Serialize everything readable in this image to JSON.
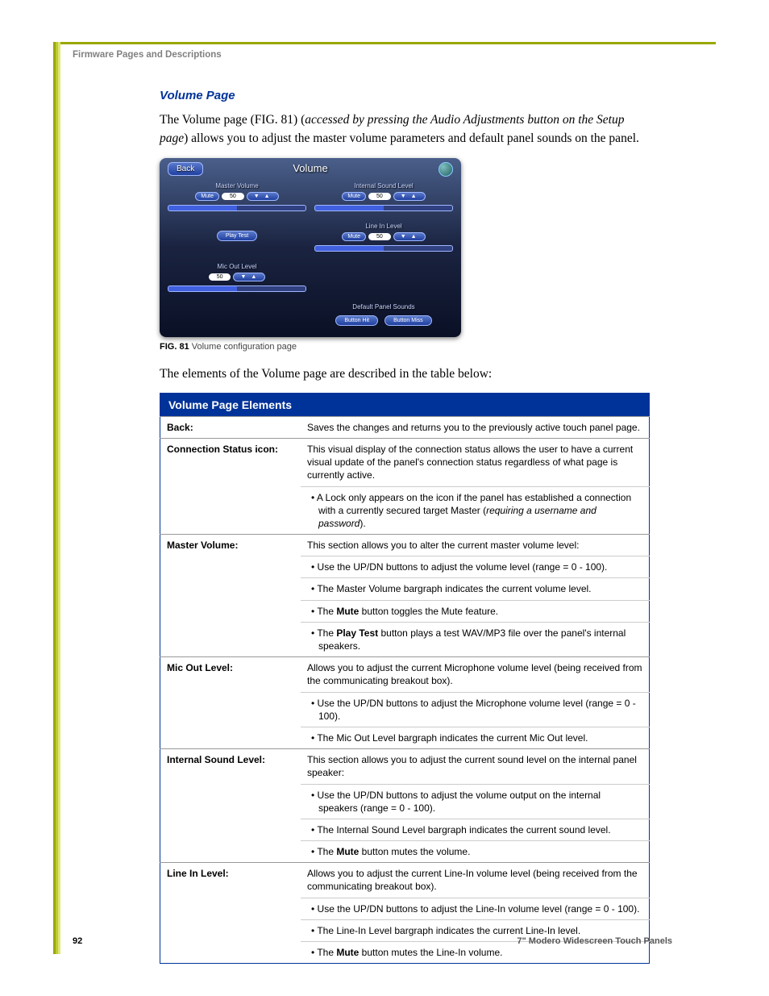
{
  "header": "Firmware Pages and Descriptions",
  "section_title": "Volume Page",
  "colors": {
    "accent_green": "#9aa800",
    "brand_blue": "#003399",
    "text_gray": "#808080",
    "border_gray": "#999999",
    "table_header_bg": "#003399",
    "table_header_fg": "#ffffff",
    "panel_bg_top": "#4a5f8a",
    "panel_bg_bottom": "#0a1025",
    "button_gradient_top": "#5a7acc",
    "button_gradient_bottom": "#2040a0",
    "button_border": "#a0b8ff"
  },
  "intro": {
    "pre": "The Volume page (FIG. 81) (",
    "italic": "accessed by pressing the Audio Adjustments button on the Setup page",
    "post": ") allows you to adjust the master volume parameters and default panel sounds on the panel."
  },
  "mockup": {
    "title": "Volume",
    "back": "Back",
    "master_volume": {
      "label": "Master Volume",
      "mute": "Mute",
      "value": "50",
      "updn": "▼  ▲"
    },
    "internal_sound": {
      "label": "Internal Sound Level",
      "mute": "Mute",
      "value": "50",
      "updn": "▼  ▲"
    },
    "play_test": {
      "btn": "Play Test"
    },
    "line_in": {
      "label": "Line In Level",
      "mute": "Mute",
      "value": "50",
      "updn": "▼  ▲"
    },
    "mic_out": {
      "label": "Mic Out Level",
      "value": "50",
      "updn": "▼  ▲"
    },
    "default_sounds": {
      "label": "Default Panel Sounds",
      "btn_hit": "Button Hit",
      "btn_miss": "Button Miss"
    }
  },
  "fig_caption": {
    "bold": "FIG. 81",
    "text": "  Volume configuration page"
  },
  "desc_line": "The elements of the Volume page are described in the table below:",
  "table": {
    "title": "Volume Page Elements",
    "rows": [
      {
        "label": "Back:",
        "cells": [
          {
            "type": "text",
            "text": "Saves the changes and returns you to the previously active touch panel page."
          }
        ]
      },
      {
        "label": "Connection Status icon:",
        "cells": [
          {
            "type": "text",
            "text": "This visual display of the connection status allows the user to have a current visual update of the panel's connection status regardless of what page is currently active."
          },
          {
            "type": "bullet",
            "pre": "A Lock only appears on the icon if the panel has established a connection with a currently secured target Master (",
            "italic": "requiring a username and password",
            "post": ")."
          }
        ]
      },
      {
        "label": "Master Volume:",
        "cells": [
          {
            "type": "text",
            "text": "This section allows you to alter the current master volume level:"
          },
          {
            "type": "bullet",
            "pre": "Use the UP/DN buttons to adjust the volume level (range = 0 - 100)."
          },
          {
            "type": "bullet",
            "pre": "The Master Volume bargraph indicates the current volume level."
          },
          {
            "type": "bullet",
            "pre": "The ",
            "bold": "Mute",
            "post": " button toggles the Mute feature."
          },
          {
            "type": "bullet",
            "pre": "The ",
            "bold": "Play Test",
            "post": " button plays a test WAV/MP3 file over the panel's internal speakers."
          }
        ]
      },
      {
        "label": "Mic Out Level:",
        "cells": [
          {
            "type": "text",
            "text": "Allows you to adjust the current Microphone volume level (being received from the communicating breakout box)."
          },
          {
            "type": "bullet",
            "pre": "Use the UP/DN buttons to adjust the Microphone volume level (range = 0 - 100)."
          },
          {
            "type": "bullet",
            "pre": "The Mic Out Level bargraph indicates the current Mic Out level."
          }
        ]
      },
      {
        "label": "Internal Sound Level:",
        "cells": [
          {
            "type": "text",
            "text": "This section allows you to adjust the current sound level on the internal panel speaker:"
          },
          {
            "type": "bullet",
            "pre": "Use the UP/DN buttons to adjust the volume output on the internal speakers (range = 0 - 100)."
          },
          {
            "type": "bullet",
            "pre": "The Internal Sound Level bargraph indicates the current sound level."
          },
          {
            "type": "bullet",
            "pre": "The ",
            "bold": "Mute",
            "post": " button mutes the volume."
          }
        ]
      },
      {
        "label": "Line In Level:",
        "cells": [
          {
            "type": "text",
            "text": "Allows you to adjust the current Line-In volume level (being received from the communicating breakout box)."
          },
          {
            "type": "bullet",
            "pre": "Use the UP/DN buttons to adjust the Line-In volume level (range = 0 - 100)."
          },
          {
            "type": "bullet",
            "pre": "The Line-In Level bargraph indicates the current Line-In level."
          },
          {
            "type": "bullet",
            "pre": "The ",
            "bold": "Mute",
            "post": " button mutes the Line-In volume."
          }
        ]
      }
    ]
  },
  "footer": {
    "page": "92",
    "title": "7\" Modero Widescreen Touch Panels"
  }
}
